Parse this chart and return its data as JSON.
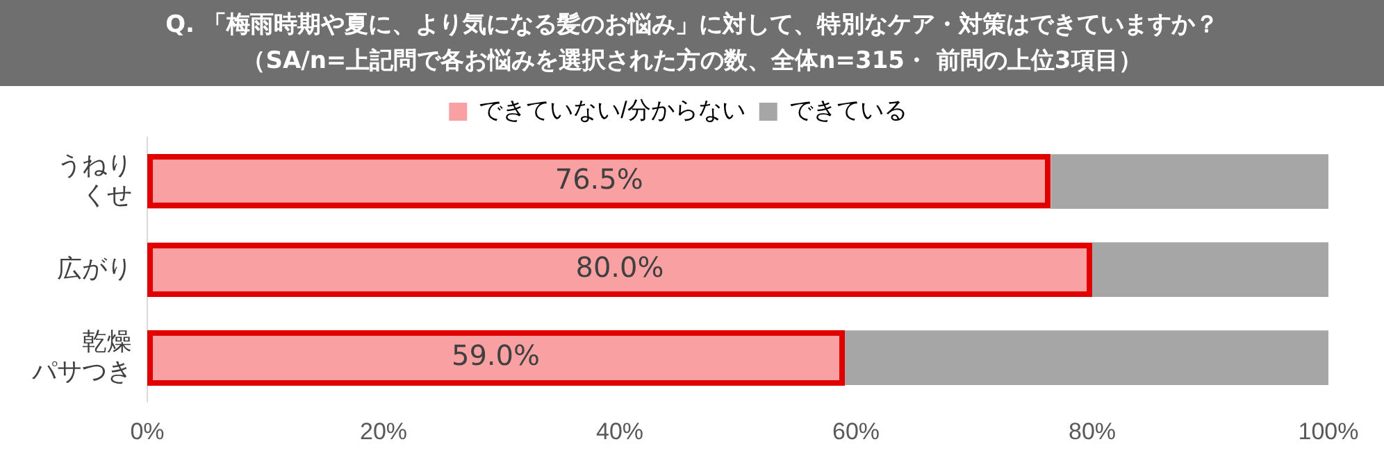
{
  "chart_data": {
    "type": "bar",
    "orientation": "horizontal",
    "stacked": true,
    "title": "Q. 「梅雨時期や夏に、より気になる髪のお悩み」に対して、特別なケア・対策はできていますか？",
    "subtitle": "（SA/n=上記問で各お悩みを選択された方の数、全体n=315・ 前問の上位3項目）",
    "categories": [
      "うねりくせ",
      "広がり",
      "乾燥パサつき"
    ],
    "series": [
      {
        "name": "できていない/分からない",
        "color": "#f9a0a2",
        "values": [
          76.5,
          80.0,
          59.0
        ],
        "value_labels": [
          "76.5%",
          "80.0%",
          "59.0%"
        ]
      },
      {
        "name": "できている",
        "color": "#a6a6a6",
        "values": [
          23.5,
          20.0,
          41.0
        ]
      }
    ],
    "xlim": [
      0,
      100
    ],
    "xticks": [
      {
        "value": 0,
        "label": "0%"
      },
      {
        "value": 20,
        "label": "20%"
      },
      {
        "value": 40,
        "label": "40%"
      },
      {
        "value": 60,
        "label": "60%"
      },
      {
        "value": 80,
        "label": "80%"
      },
      {
        "value": 100,
        "label": "100%"
      }
    ],
    "legend": "top",
    "grid": false
  }
}
